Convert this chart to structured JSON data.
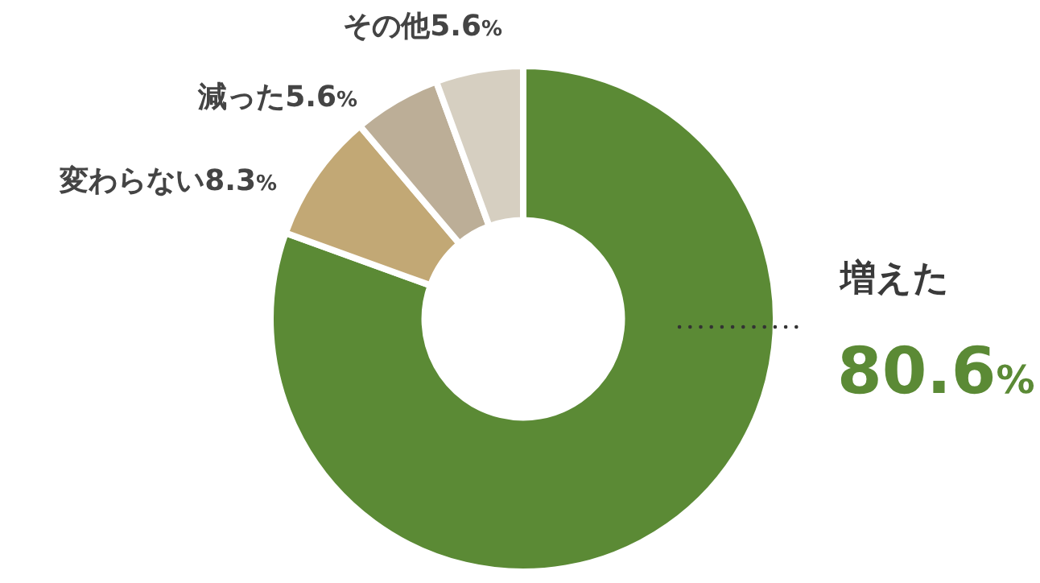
{
  "chart_data": {
    "type": "donut",
    "categories": [
      "増えた",
      "変わらない",
      "減った",
      "その他"
    ],
    "values": [
      80.6,
      8.3,
      5.6,
      5.6
    ],
    "value_labels": [
      "80.6%",
      "8.3%",
      "5.6%",
      "5.6%"
    ],
    "colors": [
      "#5b8a35",
      "#c2a875",
      "#bcae97",
      "#d6cfc1"
    ]
  }
}
